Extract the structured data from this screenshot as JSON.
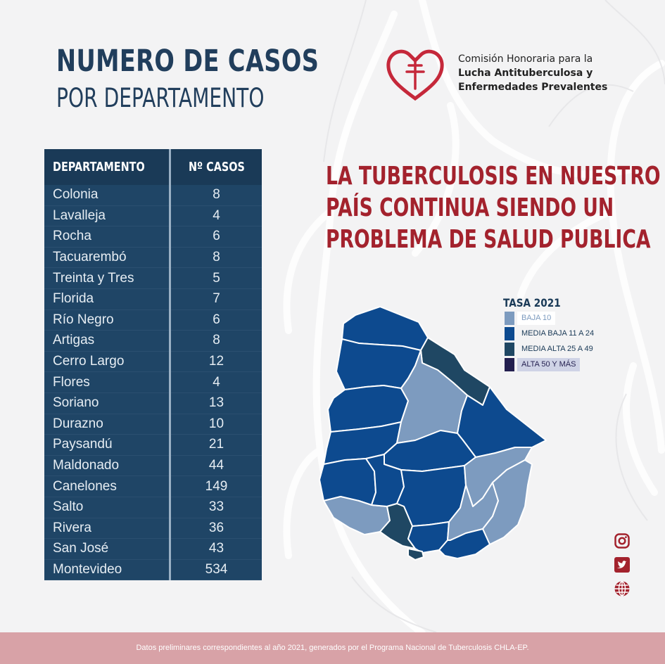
{
  "title": {
    "line1": "NUMERO DE CASOS",
    "line2": "POR DEPARTAMENTO"
  },
  "organization": {
    "line1": "Comisión Honoraria para la",
    "line2": "Lucha Antituberculosa y",
    "line3": "Enfermedades Prevalentes"
  },
  "table": {
    "headers": {
      "department": "DEPARTAMENTO",
      "cases": "Nº CASOS"
    },
    "rows": [
      {
        "department": "Colonia",
        "cases": "8"
      },
      {
        "department": "Lavalleja",
        "cases": "4"
      },
      {
        "department": "Rocha",
        "cases": "6"
      },
      {
        "department": "Tacuarembó",
        "cases": "8"
      },
      {
        "department": "Treinta y Tres",
        "cases": "5"
      },
      {
        "department": "Florida",
        "cases": "7"
      },
      {
        "department": "Río Negro",
        "cases": "6"
      },
      {
        "department": "Artigas",
        "cases": "8"
      },
      {
        "department": "Cerro Largo",
        "cases": "12"
      },
      {
        "department": "Flores",
        "cases": "4"
      },
      {
        "department": "Soriano",
        "cases": "13"
      },
      {
        "department": "Durazno",
        "cases": "10"
      },
      {
        "department": "Paysandú",
        "cases": "21"
      },
      {
        "department": "Maldonado",
        "cases": "44"
      },
      {
        "department": "Canelones",
        "cases": "149"
      },
      {
        "department": "Salto",
        "cases": "33"
      },
      {
        "department": "Rivera",
        "cases": "36"
      },
      {
        "department": "San José",
        "cases": "43"
      },
      {
        "department": "Montevideo",
        "cases": "534"
      }
    ]
  },
  "headline": {
    "line1": "LA TUBERCULOSIS EN NUESTRO",
    "line2": "PAÍS CONTINUA SIENDO UN",
    "line3": "PROBLEMA DE SALUD PUBLICA"
  },
  "legend": {
    "title": "TASA 2021",
    "items": [
      {
        "label": "BAJA  10",
        "color": "#7d9bbf",
        "text_color": "#7d9bbf"
      },
      {
        "label": "MEDIA BAJA  11 A 24",
        "color": "#0d4a8f",
        "text_color": "#1a3a57"
      },
      {
        "label": "MEDIA ALTA  25 A 49",
        "color": "#1f4763",
        "text_color": "#1a3a57"
      },
      {
        "label": "ALTA 50 Y MÁS",
        "color": "#231f4f",
        "text_color": "#231f4f"
      }
    ]
  },
  "map": {
    "regions": [
      {
        "name": "artigas",
        "level": "media_baja"
      },
      {
        "name": "salto",
        "level": "media_baja"
      },
      {
        "name": "paysandu",
        "level": "media_baja"
      },
      {
        "name": "rio-negro",
        "level": "media_baja"
      },
      {
        "name": "soriano",
        "level": "media_baja"
      },
      {
        "name": "colonia",
        "level": "baja"
      },
      {
        "name": "rivera",
        "level": "media_alta"
      },
      {
        "name": "tacuarembo",
        "level": "baja"
      },
      {
        "name": "cerro-largo",
        "level": "media_baja"
      },
      {
        "name": "durazno",
        "level": "media_baja"
      },
      {
        "name": "flores",
        "level": "media_baja"
      },
      {
        "name": "florida",
        "level": "media_baja"
      },
      {
        "name": "san-jose",
        "level": "media_alta"
      },
      {
        "name": "canelones",
        "level": "media_baja"
      },
      {
        "name": "montevideo",
        "level": "media_alta"
      },
      {
        "name": "treinta-y-tres",
        "level": "baja"
      },
      {
        "name": "lavalleja",
        "level": "baja"
      },
      {
        "name": "rocha",
        "level": "baja"
      },
      {
        "name": "maldonado",
        "level": "media_baja"
      }
    ]
  },
  "social": [
    {
      "name": "instagram-icon"
    },
    {
      "name": "twitter-icon"
    },
    {
      "name": "globe-icon"
    }
  ],
  "colors": {
    "brand_red": "#a3222d",
    "navy": "#213e5c",
    "footer": "#d8a2a7"
  },
  "footer": {
    "text": "Datos preliminares correspondientes al año 2021, generados por el Programa Nacional de Tuberculosis CHLA-EP."
  }
}
